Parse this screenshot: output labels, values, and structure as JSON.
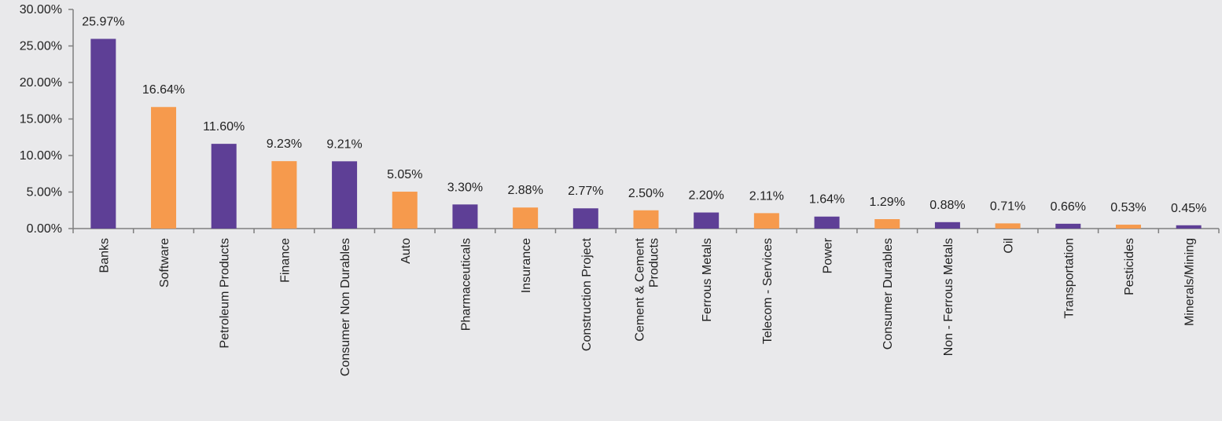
{
  "chart_data": {
    "type": "bar",
    "title": "",
    "xlabel": "",
    "ylabel": "",
    "ylim": [
      0,
      30
    ],
    "yticks": [
      "0.00%",
      "5.00%",
      "10.00%",
      "15.00%",
      "20.00%",
      "25.00%",
      "30.00%"
    ],
    "grid": false,
    "legend": "none",
    "colors": [
      "#5e3f96",
      "#f69a4d"
    ],
    "categories": [
      [
        "Banks"
      ],
      [
        "Software"
      ],
      [
        "Petroleum Products"
      ],
      [
        "Finance"
      ],
      [
        "Consumer Non Durables"
      ],
      [
        "Auto"
      ],
      [
        "Pharmaceuticals"
      ],
      [
        "Insurance"
      ],
      [
        "Construction Project"
      ],
      [
        "Cement & Cement",
        "Products"
      ],
      [
        "Ferrous Metals"
      ],
      [
        "Telecom - Services"
      ],
      [
        "Power"
      ],
      [
        "Consumer Durables"
      ],
      [
        "Non - Ferrous Metals"
      ],
      [
        "Oil"
      ],
      [
        "Transportation"
      ],
      [
        "Pesticides"
      ],
      [
        "Minerals/Mining"
      ]
    ],
    "values": [
      25.97,
      16.64,
      11.6,
      9.23,
      9.21,
      5.05,
      3.3,
      2.88,
      2.77,
      2.5,
      2.2,
      2.11,
      1.64,
      1.29,
      0.88,
      0.71,
      0.66,
      0.53,
      0.45
    ],
    "data_labels": [
      "25.97%",
      "16.64%",
      "11.60%",
      "9.23%",
      "9.21%",
      "5.05%",
      "3.30%",
      "2.88%",
      "2.77%",
      "2.50%",
      "2.20%",
      "2.11%",
      "1.64%",
      "1.29%",
      "0.88%",
      "0.71%",
      "0.66%",
      "0.53%",
      "0.45%"
    ]
  }
}
